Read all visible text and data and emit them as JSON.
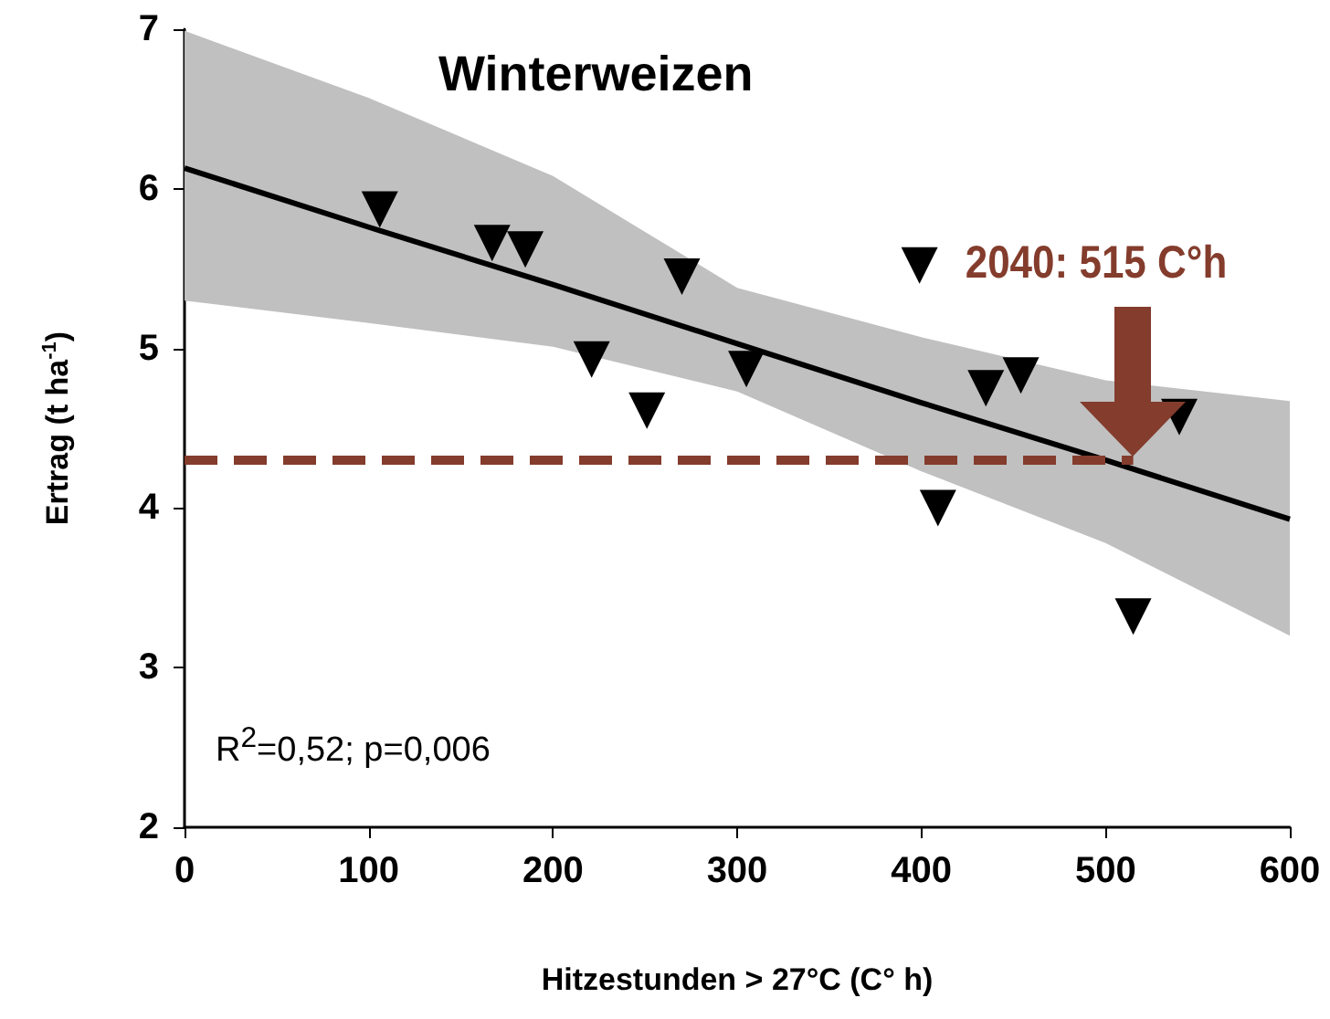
{
  "chart_data": {
    "type": "scatter",
    "title": "Winterweizen",
    "xlabel": "Hitzestunden > 27°C (C° h)",
    "ylabel": "Ertrag (t ha$^{-1}$)",
    "series": [
      {
        "color": "#000000",
        "marker": "triangle",
        "x": [
          106,
          167,
          185,
          270,
          221,
          251,
          305,
          399,
          435,
          454,
          409,
          540,
          515
        ],
        "values": [
          5.87,
          5.66,
          5.62,
          5.45,
          4.93,
          4.61,
          4.87,
          5.52,
          4.75,
          4.83,
          4.0,
          4.57,
          3.32
        ]
      },
      {
        "type": "line",
        "color": "#000000",
        "marker": "none",
        "line_style": "solid",
        "x": [
          0,
          100,
          200,
          300,
          400,
          500,
          600
        ],
        "values": [
          6.13,
          5.76,
          5.4,
          5.03,
          4.66,
          4.3,
          3.93
        ],
        "lower": [
          5.3,
          5.16,
          5.01,
          4.73,
          4.23,
          3.78,
          3.2
        ],
        "upper": [
          6.99,
          6.57,
          6.08,
          5.38,
          5.07,
          4.8,
          4.67
        ]
      },
      {
        "type": "line",
        "color": "#843c2c",
        "marker": "none",
        "line_style": "dashed",
        "x": [
          0,
          515
        ],
        "values": [
          4.3,
          4.3
        ]
      }
    ],
    "xlim": [
      0,
      600
    ],
    "xticks": [
      0,
      100,
      200,
      300,
      400,
      500,
      600
    ],
    "ylim": [
      2,
      7
    ],
    "yticks": [
      2,
      3,
      4,
      5,
      6,
      7
    ],
    "grid": false,
    "annotations": [
      "2040: 515 C°h",
      "R$^{2}$=0,52; p=0,006"
    ]
  }
}
